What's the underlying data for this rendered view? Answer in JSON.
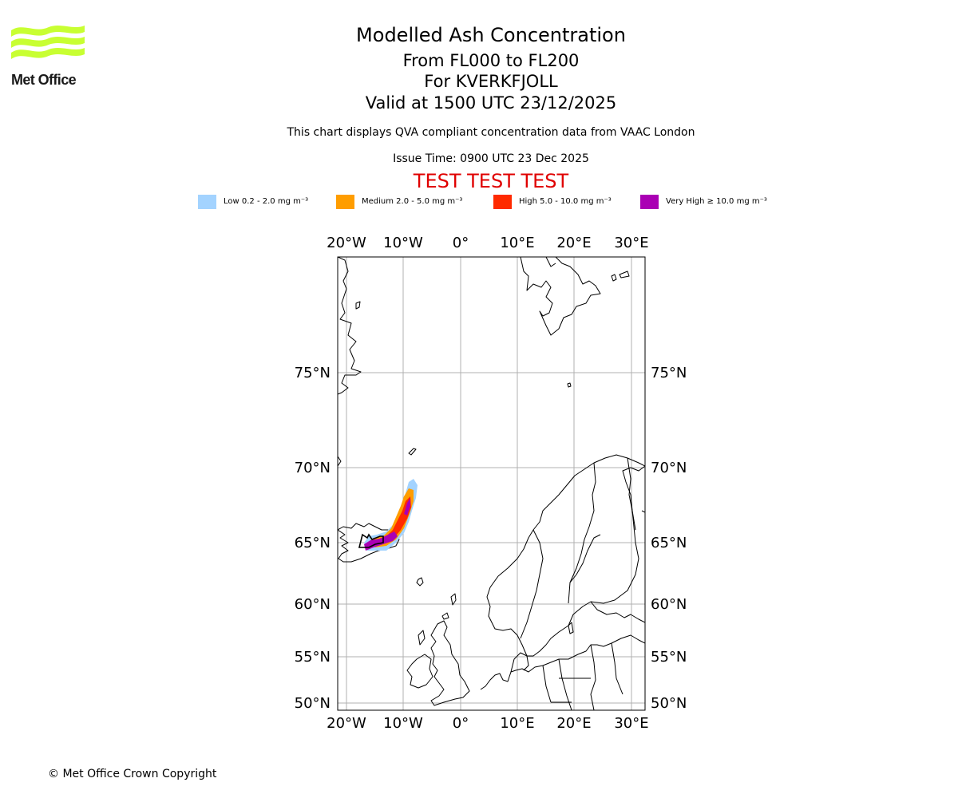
{
  "logo": {
    "text": "Met Office",
    "icon": "met-office-wave-logo",
    "color": "#c8ff32"
  },
  "title": {
    "main": "Modelled Ash Concentration",
    "levels": "From FL000 to FL200",
    "volcano": "For KVERKFJOLL",
    "valid": "Valid at 1500 UTC 23/12/2025",
    "compliance": "This chart displays QVA compliant concentration data from VAAC London",
    "issue": "Issue Time: 0900 UTC 23 Dec 2025",
    "test_banner": "TEST TEST TEST"
  },
  "legend": [
    {
      "label": "Low 0.2 - 2.0 mg m⁻³",
      "color": "#a3d3ff"
    },
    {
      "label": "Medium 2.0 - 5.0 mg m⁻³",
      "color": "#ff9d00"
    },
    {
      "label": "High 5.0 - 10.0 mg m⁻³",
      "color": "#ff2a00"
    },
    {
      "label": "Very High ≥ 10.0 mg m⁻³",
      "color": "#aa00b4"
    }
  ],
  "map": {
    "lon_labels": [
      "20°W",
      "10°W",
      "0°",
      "10°E",
      "20°E",
      "30°E"
    ],
    "lat_labels": [
      "75°N",
      "70°N",
      "65°N",
      "60°N",
      "55°N",
      "50°N"
    ],
    "gridlines": true,
    "grid_color": "#b0b0b0"
  },
  "copyright": "© Met Office Crown Copyright"
}
